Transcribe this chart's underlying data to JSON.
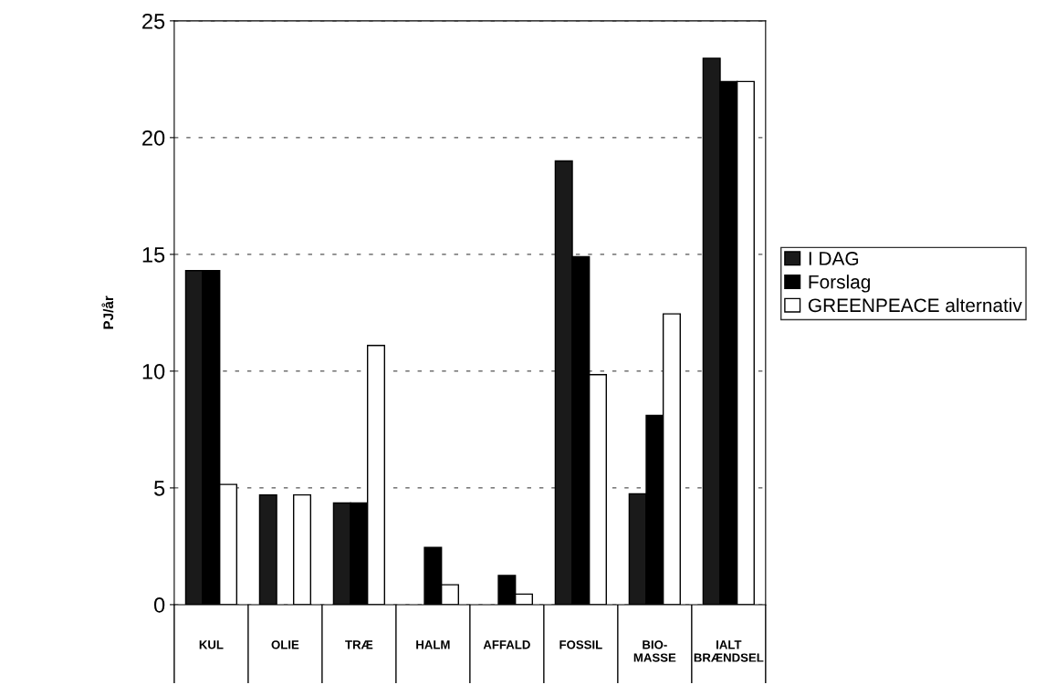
{
  "chart_data": {
    "type": "bar",
    "ylabel": "PJ/år",
    "categories": [
      "KUL",
      "OLIE",
      "TRÆ",
      "HALM",
      "AFFALD",
      "FOSSIL",
      "BIO-\nMASSE",
      "IALT\nBRÆNDSEL"
    ],
    "series": [
      {
        "name": "I DAG",
        "color": "#1a1a1a",
        "values": [
          14.3,
          4.7,
          4.35,
          0,
          0,
          19.0,
          4.75,
          23.4
        ]
      },
      {
        "name": "Forslag",
        "color": "#000000",
        "values": [
          14.3,
          0,
          4.35,
          2.45,
          1.25,
          14.9,
          8.1,
          22.4
        ]
      },
      {
        "name": "GREENPEACE alternativ",
        "color": "#ffffff",
        "values": [
          5.15,
          4.7,
          11.1,
          0.85,
          0.45,
          9.85,
          12.45,
          22.4
        ]
      }
    ],
    "ylim": [
      0,
      25
    ],
    "yticks": [
      0,
      5,
      10,
      15,
      20,
      25
    ],
    "grid": "y",
    "legend": "right"
  }
}
